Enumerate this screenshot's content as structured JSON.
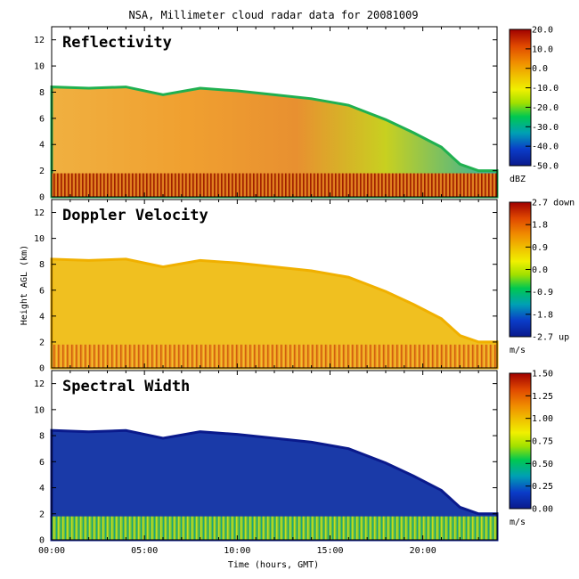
{
  "title": "NSA, Millimeter cloud radar data for 20081009",
  "ylabel": "Height AGL (km)",
  "xlabel": "Time (hours, GMT)",
  "x_ticks": [
    "00:00",
    "05:00",
    "10:00",
    "15:00",
    "20:00"
  ],
  "colors": {
    "colormap": [
      "#0a1a8c",
      "#0a3cc8",
      "#00a0b4",
      "#00c850",
      "#a0e000",
      "#f0f000",
      "#f0c000",
      "#f08c00",
      "#e04800",
      "#a00000"
    ],
    "background": "#ffffff"
  },
  "chart_data": [
    {
      "type": "heatmap",
      "title": "Reflectivity",
      "xlim": [
        0,
        24
      ],
      "ylim": [
        0,
        13
      ],
      "y_ticks": [
        "0",
        "2",
        "4",
        "6",
        "8",
        "10",
        "12"
      ],
      "colorbar": {
        "unit": "dBZ",
        "range": [
          -50,
          20
        ],
        "tick_labels": [
          "20.0",
          "10.0",
          "0.0",
          "-10.0",
          "-20.0",
          "-30.0",
          "-40.0",
          "-50.0"
        ]
      },
      "cloud_top_km": [
        [
          0,
          8.4
        ],
        [
          2,
          8.3
        ],
        [
          4,
          8.4
        ],
        [
          6,
          7.8
        ],
        [
          8,
          8.3
        ],
        [
          10,
          8.1
        ],
        [
          12,
          7.8
        ],
        [
          14,
          7.5
        ],
        [
          16,
          7.0
        ],
        [
          18,
          5.9
        ],
        [
          19.5,
          4.9
        ],
        [
          21,
          3.8
        ],
        [
          22,
          2.5
        ],
        [
          23,
          2.0
        ],
        [
          24,
          2.0
        ]
      ],
      "cloud_base_km": 0.0
    },
    {
      "type": "heatmap",
      "title": "Doppler Velocity",
      "xlim": [
        0,
        24
      ],
      "ylim": [
        0,
        13
      ],
      "y_ticks": [
        "0",
        "2",
        "4",
        "6",
        "8",
        "10",
        "12"
      ],
      "colorbar": {
        "unit": "m/s",
        "range": [
          -2.7,
          2.7
        ],
        "tick_labels": [
          "2.7 down",
          "1.8",
          "0.9",
          "0.0",
          "-0.9",
          "-1.8",
          "-2.7 up"
        ]
      },
      "cloud_top_km": [
        [
          0,
          8.4
        ],
        [
          2,
          8.3
        ],
        [
          4,
          8.4
        ],
        [
          6,
          7.8
        ],
        [
          8,
          8.3
        ],
        [
          10,
          8.1
        ],
        [
          12,
          7.8
        ],
        [
          14,
          7.5
        ],
        [
          16,
          7.0
        ],
        [
          18,
          5.9
        ],
        [
          19.5,
          4.9
        ],
        [
          21,
          3.8
        ],
        [
          22,
          2.5
        ],
        [
          23,
          2.0
        ],
        [
          24,
          2.0
        ]
      ],
      "cloud_base_km": 0.0
    },
    {
      "type": "heatmap",
      "title": "Spectral Width",
      "xlim": [
        0,
        24
      ],
      "ylim": [
        0,
        13
      ],
      "y_ticks": [
        "0",
        "2",
        "4",
        "6",
        "8",
        "10",
        "12"
      ],
      "colorbar": {
        "unit": "m/s",
        "range": [
          0,
          1.5
        ],
        "tick_labels": [
          "1.50",
          "1.25",
          "1.00",
          "0.75",
          "0.50",
          "0.25",
          "0.00"
        ]
      },
      "cloud_top_km": [
        [
          0,
          8.4
        ],
        [
          2,
          8.3
        ],
        [
          4,
          8.4
        ],
        [
          6,
          7.8
        ],
        [
          8,
          8.3
        ],
        [
          10,
          8.1
        ],
        [
          12,
          7.8
        ],
        [
          14,
          7.5
        ],
        [
          16,
          7.0
        ],
        [
          18,
          5.9
        ],
        [
          19.5,
          4.9
        ],
        [
          21,
          3.8
        ],
        [
          22,
          2.5
        ],
        [
          23,
          2.0
        ],
        [
          24,
          2.0
        ]
      ],
      "cloud_base_km": 0.0
    }
  ]
}
